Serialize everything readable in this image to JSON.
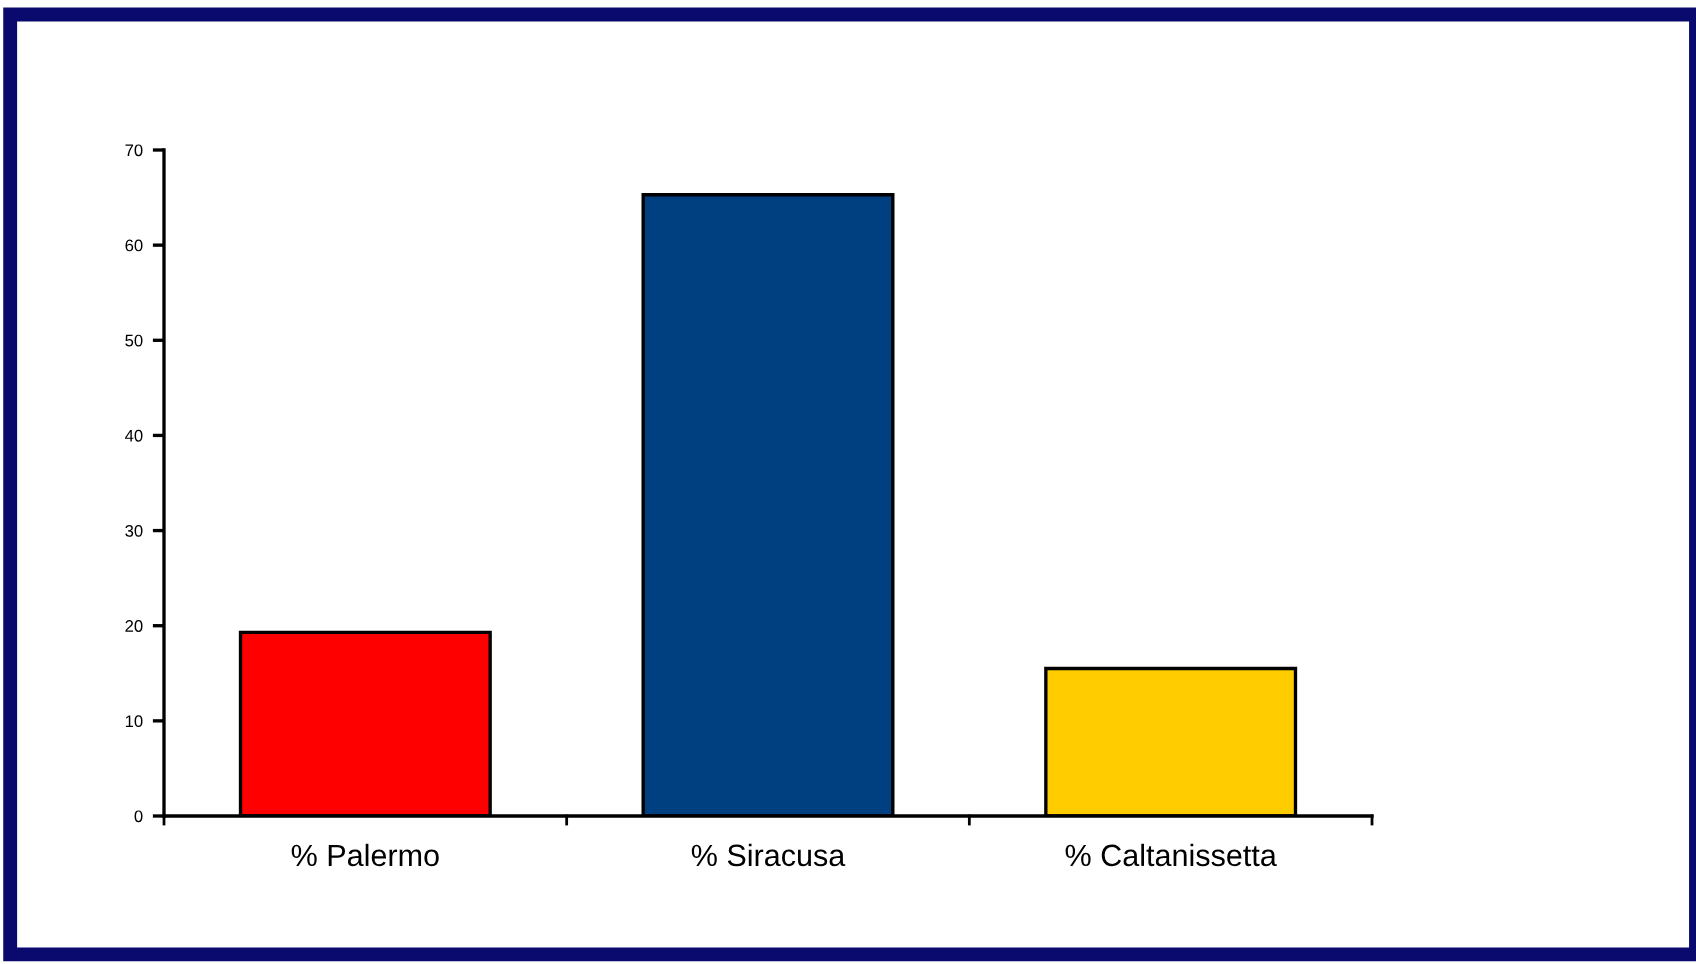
{
  "chart_data": {
    "type": "bar",
    "categories": [
      "% Palermo",
      "% Siracusa",
      "% Caltanissetta"
    ],
    "values": [
      19.3,
      65.3,
      15.5
    ],
    "colors": [
      "#ff0000",
      "#003f80",
      "#ffcc00"
    ],
    "ylim": [
      0,
      70
    ],
    "yticks": [
      0,
      10,
      20,
      30,
      40,
      50,
      60,
      70
    ],
    "grid": false,
    "legend": false
  }
}
